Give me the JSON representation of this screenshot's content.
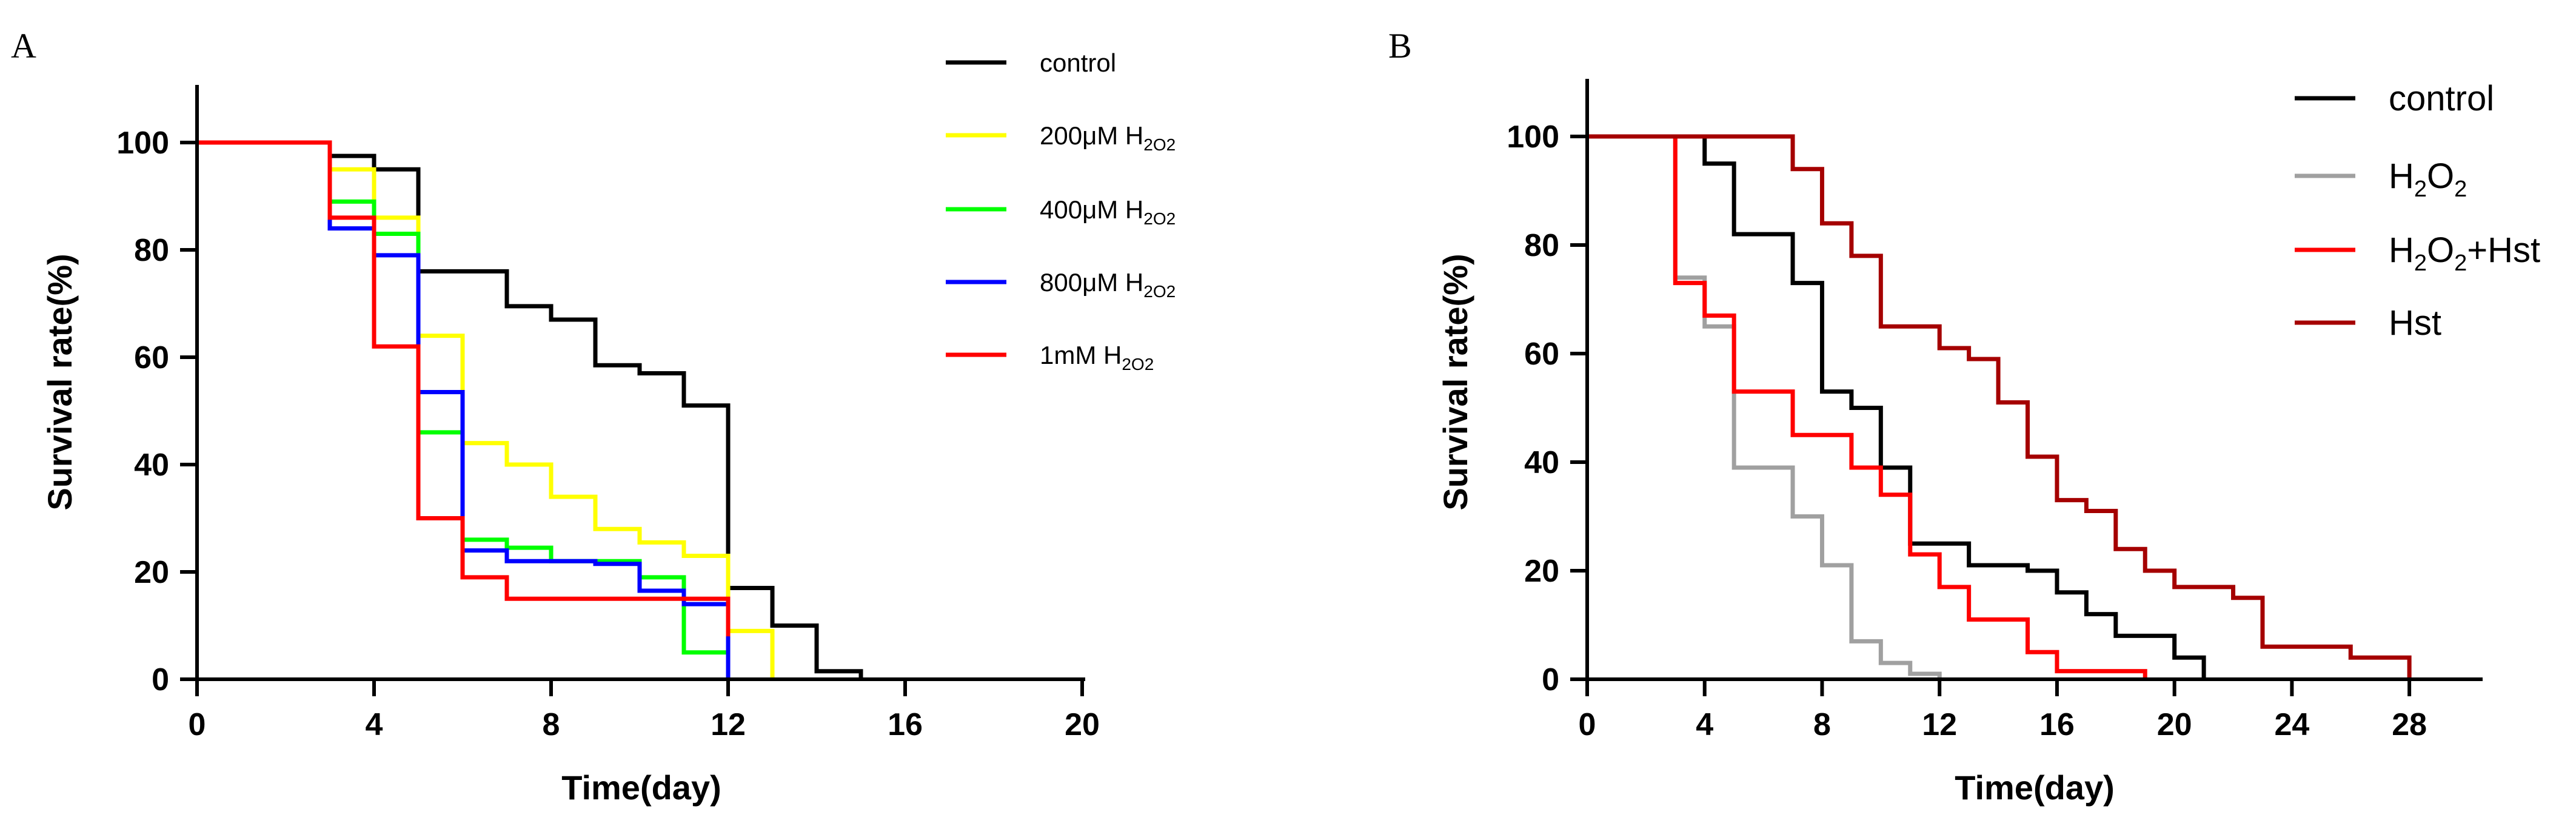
{
  "chart_data": [
    {
      "type": "line",
      "panel_label": "A",
      "xlabel": "Time(day)",
      "ylabel": "Survival rate(%)",
      "xlim": [
        0,
        20
      ],
      "ylim": [
        0,
        100
      ],
      "xticks": [
        0,
        4,
        8,
        12,
        16,
        20
      ],
      "yticks": [
        0,
        20,
        40,
        60,
        80,
        100
      ],
      "legend_position": "top-right",
      "series": [
        {
          "name": "control",
          "label_main": "control",
          "label_sub_text": "",
          "color": "#000000",
          "x": [
            0,
            3,
            4,
            5,
            7,
            8,
            9,
            10,
            11,
            12,
            13,
            14,
            15
          ],
          "y": [
            100,
            97.5,
            95,
            76,
            69.5,
            67,
            58.5,
            57,
            51,
            17,
            10,
            1.5,
            0
          ]
        },
        {
          "name": "200μM H2O2",
          "label_main": "200μM H",
          "label_sub_text": "2O2",
          "color": "#FFFF00",
          "x": [
            0,
            3,
            4,
            5,
            6,
            7,
            8,
            9,
            10,
            11,
            12,
            13
          ],
          "y": [
            100,
            95,
            86,
            64,
            44,
            40,
            34,
            28,
            25.5,
            23,
            9,
            0
          ]
        },
        {
          "name": "400μM H2O2",
          "label_main": "400μM H",
          "label_sub_text": "2O2",
          "color": "#00FF00",
          "x": [
            0,
            3,
            4,
            5,
            6,
            7,
            8,
            9,
            10,
            11,
            12
          ],
          "y": [
            100,
            89,
            83,
            46,
            26,
            24.5,
            22,
            22,
            19,
            5,
            0
          ]
        },
        {
          "name": "800μM H2O2",
          "label_main": "800μM H",
          "label_sub_text": "2O2",
          "color": "#0000FF",
          "x": [
            0,
            3,
            4,
            5,
            6,
            7,
            8,
            9,
            10,
            11,
            12
          ],
          "y": [
            100,
            84,
            79,
            53.5,
            24,
            22,
            22,
            21.5,
            16.5,
            14,
            0
          ]
        },
        {
          "name": "1mM H2O2",
          "label_main": "1mM H",
          "label_sub_text": "2O2",
          "color": "#FF0000",
          "x": [
            0,
            3,
            4,
            5,
            6,
            7,
            8,
            9,
            10,
            11,
            12
          ],
          "y": [
            100,
            86,
            62,
            30,
            19,
            15,
            15,
            15,
            15,
            15,
            8
          ]
        }
      ]
    },
    {
      "type": "line",
      "panel_label": "B",
      "xlabel": "Time(day)",
      "ylabel": "Survival rate(%)",
      "xlim": [
        0,
        30
      ],
      "ylim": [
        0,
        100
      ],
      "xticks": [
        0,
        4,
        8,
        12,
        16,
        20,
        24,
        28
      ],
      "yticks": [
        0,
        20,
        40,
        60,
        80,
        100
      ],
      "legend_position": "top-right",
      "series": [
        {
          "name": "control",
          "label_parts": [
            {
              "t": "control",
              "sub": false
            }
          ],
          "color": "#000000",
          "x": [
            0,
            4,
            5,
            7,
            8,
            9,
            10,
            11,
            13,
            15,
            16,
            17,
            18,
            20,
            21
          ],
          "y": [
            100,
            95,
            82,
            73,
            53,
            50,
            39,
            25,
            21,
            20,
            16,
            12,
            8,
            4,
            0
          ]
        },
        {
          "name": "H2O2",
          "label_parts": [
            {
              "t": "H",
              "sub": false
            },
            {
              "t": "2",
              "sub": true
            },
            {
              "t": "O",
              "sub": false
            },
            {
              "t": "2",
              "sub": true
            }
          ],
          "color": "#A0A0A0",
          "x": [
            0,
            3,
            4,
            5,
            7,
            8,
            9,
            10,
            11,
            12
          ],
          "y": [
            100,
            74,
            65,
            39,
            30,
            21,
            7,
            3,
            1,
            0
          ]
        },
        {
          "name": "H2O2+Hst",
          "label_parts": [
            {
              "t": "H",
              "sub": false
            },
            {
              "t": "2",
              "sub": true
            },
            {
              "t": "O",
              "sub": false
            },
            {
              "t": "2",
              "sub": true
            },
            {
              "t": "+Hst",
              "sub": false
            }
          ],
          "color": "#FF0000",
          "x": [
            0,
            3,
            4,
            5,
            7,
            9,
            10,
            11,
            12,
            13,
            15,
            16,
            19
          ],
          "y": [
            100,
            73,
            67,
            53,
            45,
            39,
            34,
            23,
            17,
            11,
            5,
            1.5,
            0
          ]
        },
        {
          "name": "Hst",
          "label_parts": [
            {
              "t": "Hst",
              "sub": false
            }
          ],
          "color": "#A50000",
          "x": [
            0,
            6,
            7,
            8,
            9,
            10,
            12,
            13,
            14,
            15,
            16,
            17,
            18,
            19,
            20,
            22,
            23,
            26,
            28
          ],
          "y": [
            100,
            100,
            94,
            84,
            78,
            65,
            61,
            59,
            51,
            41,
            33,
            31,
            24,
            20,
            17,
            15,
            6,
            4,
            0
          ]
        }
      ]
    }
  ]
}
